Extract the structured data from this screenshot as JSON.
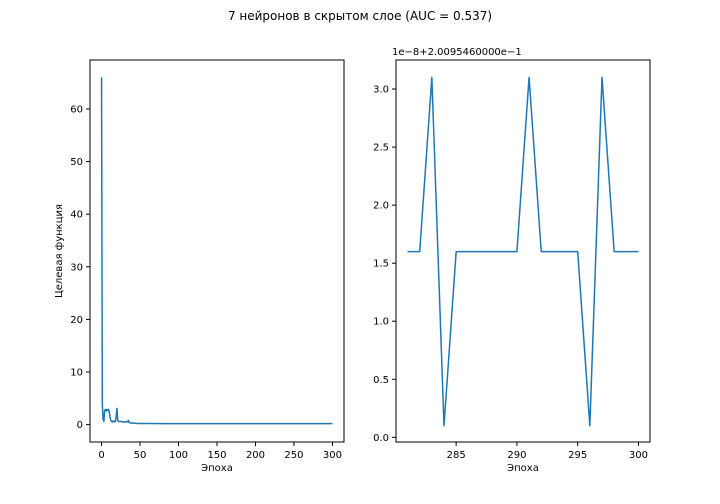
{
  "suptitle": "7 нейронов в скрытом слое (AUC = 0.537)",
  "colors": {
    "series": "#1f77b4"
  },
  "chart_data": [
    {
      "type": "line",
      "title": "",
      "xlabel": "Эпоха",
      "ylabel": "Целевая функция",
      "xlim": [
        -15,
        315
      ],
      "ylim": [
        -3.3,
        69.3
      ],
      "xticks": [
        0,
        50,
        100,
        150,
        200,
        250,
        300
      ],
      "yticks": [
        0,
        10,
        20,
        30,
        40,
        50,
        60
      ],
      "grid": false,
      "series": [
        {
          "name": "",
          "x": [
            0,
            1,
            2,
            3,
            4,
            5,
            6,
            7,
            8,
            9,
            10,
            11,
            12,
            13,
            14,
            15,
            16,
            17,
            18,
            19,
            20,
            21,
            22,
            24,
            26,
            28,
            30,
            32,
            34,
            35,
            36,
            38,
            40,
            45,
            50,
            60,
            80,
            100,
            150,
            200,
            250,
            300
          ],
          "y": [
            66.0,
            4.0,
            1.0,
            0.6,
            2.6,
            2.9,
            2.6,
            2.9,
            2.7,
            2.9,
            2.5,
            1.5,
            0.8,
            0.6,
            0.5,
            0.7,
            0.7,
            0.5,
            0.6,
            1.5,
            3.1,
            0.8,
            0.6,
            0.6,
            0.6,
            0.5,
            0.5,
            0.6,
            0.5,
            0.8,
            0.4,
            0.3,
            0.3,
            0.25,
            0.22,
            0.21,
            0.2,
            0.2,
            0.2,
            0.2,
            0.2,
            0.2
          ]
        }
      ]
    },
    {
      "type": "line",
      "title": "",
      "xlabel": "Эпоха",
      "ylabel": "",
      "offset_text": "1e−8+2.0095460000e−1",
      "xlim": [
        280.05,
        300.95
      ],
      "ylim": [
        -0.04,
        3.25
      ],
      "xticks": [
        285,
        290,
        295,
        300
      ],
      "xtick_labels": [
        "285",
        "290",
        "295",
        "300"
      ],
      "yticks": [
        0.0,
        0.5,
        1.0,
        1.5,
        2.0,
        2.5,
        3.0
      ],
      "ytick_labels": [
        "0.0",
        "0.5",
        "1.0",
        "1.5",
        "2.0",
        "2.5",
        "3.0"
      ],
      "grid": false,
      "series": [
        {
          "name": "",
          "x": [
            281,
            282,
            283,
            284,
            285,
            286,
            287,
            288,
            289,
            290,
            291,
            292,
            293,
            294,
            295,
            296,
            297,
            298,
            299,
            300
          ],
          "y": [
            1.6,
            1.6,
            3.1,
            0.1,
            1.6,
            1.6,
            1.6,
            1.6,
            1.6,
            1.6,
            3.1,
            1.6,
            1.6,
            1.6,
            1.6,
            0.1,
            3.1,
            1.6,
            1.6,
            1.6
          ]
        }
      ]
    }
  ]
}
